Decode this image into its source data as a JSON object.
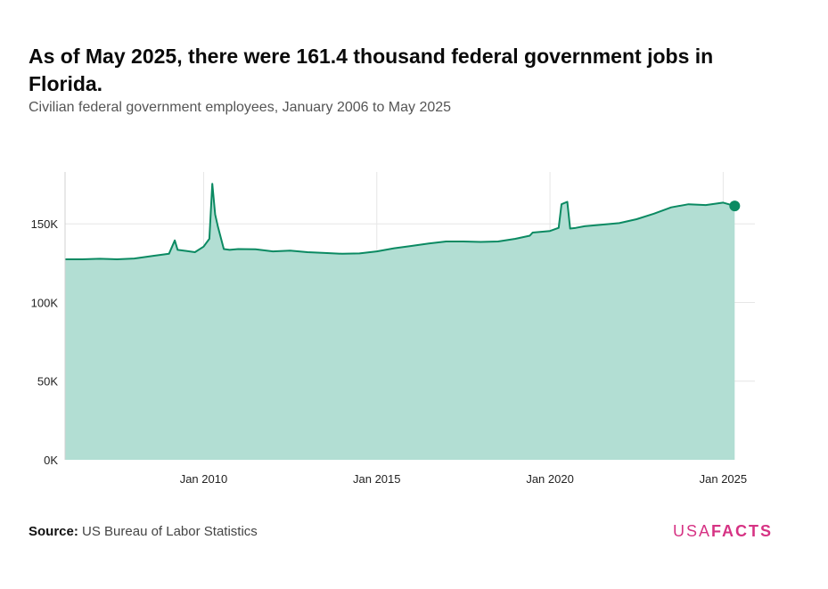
{
  "title": "As of May 2025, there were 161.4 thousand federal government jobs in Florida.",
  "subtitle": "Civilian federal government employees, January 2006 to May 2025",
  "source_label": "Source:",
  "source_text": "US Bureau of Labor Statistics",
  "logo": {
    "part1": "USA",
    "part2": "FACTS"
  },
  "colors": {
    "line": "#0b8a62",
    "fill": "#b2ded3",
    "grid": "#e6e6e6",
    "logo": "#d63384"
  },
  "chart_data": {
    "type": "area",
    "title": "As of May 2025, there were 161.4 thousand federal government jobs in Florida.",
    "subtitle": "Civilian federal government employees, January 2006 to May 2025",
    "xlabel": "",
    "ylabel": "",
    "ylim": [
      0,
      183000
    ],
    "xlim": [
      "2006-01",
      "2025-12"
    ],
    "yticks": [
      0,
      50000,
      100000,
      150000
    ],
    "ytick_labels": [
      "0K",
      "50K",
      "100K",
      "150K"
    ],
    "xticks": [
      "2010-01",
      "2015-01",
      "2020-01",
      "2025-01"
    ],
    "xtick_labels": [
      "Jan 2010",
      "Jan 2015",
      "Jan 2020",
      "Jan 2025"
    ],
    "grid": true,
    "series": [
      {
        "values_note": "",
        "x": [
          "2006-01",
          "2006-07",
          "2007-01",
          "2007-07",
          "2008-01",
          "2008-07",
          "2009-01",
          "2009-03",
          "2009-04",
          "2009-07",
          "2009-10",
          "2010-01",
          "2010-03",
          "2010-04",
          "2010-05",
          "2010-06",
          "2010-08",
          "2010-10",
          "2011-01",
          "2011-07",
          "2012-01",
          "2012-07",
          "2013-01",
          "2013-07",
          "2014-01",
          "2014-07",
          "2015-01",
          "2015-07",
          "2016-01",
          "2016-07",
          "2017-01",
          "2017-07",
          "2018-01",
          "2018-07",
          "2019-01",
          "2019-06",
          "2019-07",
          "2020-01",
          "2020-04",
          "2020-05",
          "2020-07",
          "2020-08",
          "2020-10",
          "2021-01",
          "2021-07",
          "2022-01",
          "2022-07",
          "2023-01",
          "2023-07",
          "2024-01",
          "2024-07",
          "2025-01",
          "2025-05"
        ],
        "values": [
          127500,
          127500,
          127800,
          127500,
          128000,
          129500,
          131000,
          139500,
          133500,
          132800,
          132000,
          135500,
          140500,
          175500,
          156000,
          148000,
          134000,
          133500,
          134000,
          133800,
          132500,
          133000,
          132000,
          131500,
          131000,
          131200,
          132500,
          134500,
          136000,
          137500,
          138800,
          138800,
          138500,
          138800,
          140500,
          142500,
          144500,
          145500,
          147500,
          162500,
          164000,
          147000,
          147500,
          148500,
          149500,
          150500,
          153000,
          156500,
          160500,
          162500,
          162000,
          163500,
          161400
        ]
      }
    ],
    "last_point": {
      "x": "2025-05",
      "y": 161400
    }
  }
}
